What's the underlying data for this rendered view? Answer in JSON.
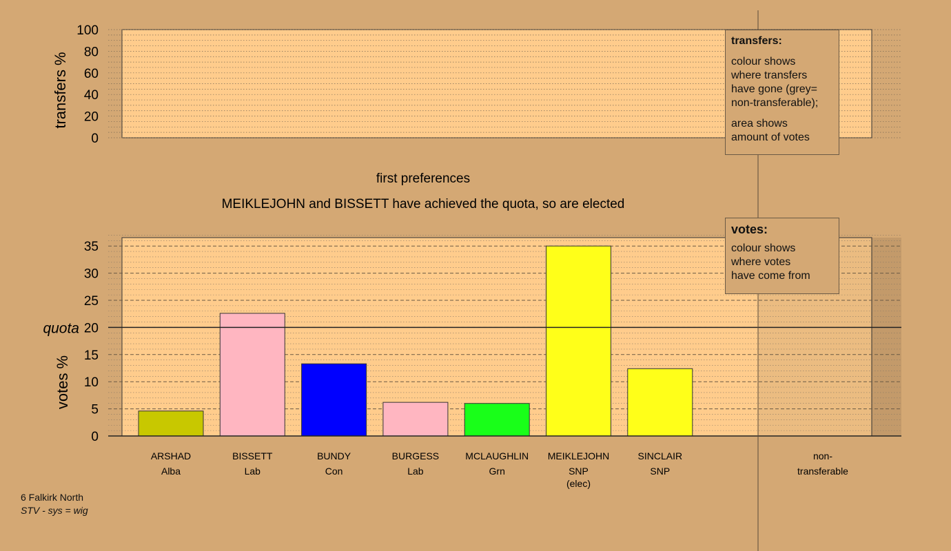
{
  "colors": {
    "background": "#d4a874",
    "plot_fill": "#ffcc8c",
    "Alba": "#c8c800",
    "Lab": "#ffb6c1",
    "Con": "#0000ff",
    "Grn": "#19ff19",
    "SNP": "#ffff19"
  },
  "top_chart": {
    "ylabel": "transfers %",
    "yticks": [
      "0",
      "20",
      "40",
      "60",
      "80",
      "100"
    ],
    "ylim": [
      0,
      100
    ]
  },
  "headings": {
    "stage": "first preferences",
    "message": "MEIKLEJOHN and BISSETT have achieved the quota, so are elected"
  },
  "legend_transfers": {
    "title": "transfers:",
    "text1": "colour shows\nwhere transfers\nhave gone (grey=\nnon-transferable);",
    "text2": "area shows\namount of votes"
  },
  "legend_votes": {
    "title": "votes:",
    "text": "colour shows\nwhere votes\nhave come from"
  },
  "chart_data": {
    "type": "bar",
    "ylabel": "votes %",
    "ylim": [
      0,
      37
    ],
    "yticks": [
      "0",
      "5",
      "10",
      "15",
      "20",
      "25",
      "30",
      "35"
    ],
    "quota_label": "quota",
    "quota": 20,
    "categories": [
      {
        "name": "ARSHAD",
        "party": "Alba",
        "note": "",
        "value": 4.6,
        "color_key": "Alba"
      },
      {
        "name": "BISSETT",
        "party": "Lab",
        "note": "",
        "value": 22.6,
        "color_key": "Lab"
      },
      {
        "name": "BUNDY",
        "party": "Con",
        "note": "",
        "value": 13.3,
        "color_key": "Con"
      },
      {
        "name": "BURGESS",
        "party": "Lab",
        "note": "",
        "value": 6.2,
        "color_key": "Lab"
      },
      {
        "name": "MCLAUGHLIN",
        "party": "Grn",
        "note": "",
        "value": 6.0,
        "color_key": "Grn"
      },
      {
        "name": "MEIKLEJOHN",
        "party": "SNP",
        "note": "(elec)",
        "value": 35.0,
        "color_key": "SNP"
      },
      {
        "name": "SINCLAIR",
        "party": "SNP",
        "note": "",
        "value": 12.4,
        "color_key": "SNP"
      }
    ],
    "nontransferable": {
      "line1": "non-",
      "line2": "transferable"
    }
  },
  "footer": {
    "constituency": "6 Falkirk North",
    "system": "STV - sys = wig"
  }
}
